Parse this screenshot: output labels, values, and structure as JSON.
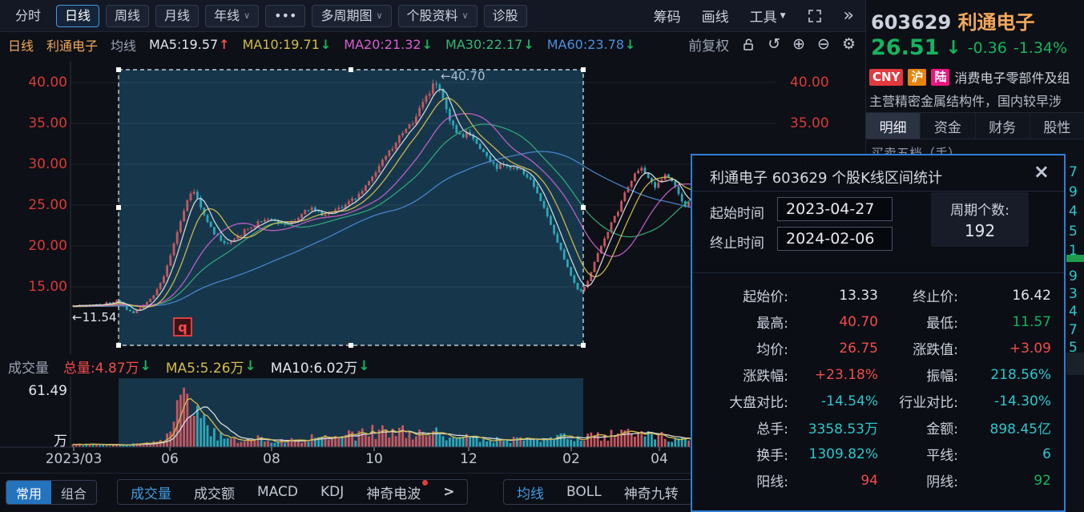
{
  "toolbar": {
    "left": [
      {
        "label": "分时",
        "style": "plain"
      },
      {
        "label": "日线",
        "style": "active"
      },
      {
        "label": "周线"
      },
      {
        "label": "月线"
      },
      {
        "label": "年线",
        "caret": true
      },
      {
        "label": "•••"
      },
      {
        "label": "多周期图",
        "caret": true
      },
      {
        "label": "个股资料",
        "caret": true
      },
      {
        "label": "诊股"
      }
    ],
    "right": [
      "筹码",
      "画线",
      "工具"
    ],
    "more_label": "»"
  },
  "stock": {
    "code": "603629",
    "name": "利通电子",
    "price": "26.51",
    "change": "-0.36",
    "change_pct": "-1.34%"
  },
  "ma_row": {
    "period": "日线",
    "name": "利通电子",
    "label": "均线",
    "items": [
      {
        "text": "MA5:19.57",
        "color": "#e2e6ee",
        "dir": "up"
      },
      {
        "text": "MA10:19.71",
        "color": "#d3bc4e",
        "dir": "down"
      },
      {
        "text": "MA20:21.32",
        "color": "#d85fd0",
        "dir": "down"
      },
      {
        "text": "MA30:22.17",
        "color": "#35b878",
        "dir": "down"
      },
      {
        "text": "MA60:23.78",
        "color": "#4a8fdc",
        "dir": "down"
      }
    ],
    "adjust": "前复权"
  },
  "volume_row": {
    "title": "成交量",
    "total": "总量:4.87万",
    "ma5": "MA5:5.26万",
    "ma10": "MA10:6.02万",
    "max_label": "61.49",
    "unit": "万"
  },
  "bottom": {
    "left_tabs": [
      {
        "label": "常用",
        "active": true
      },
      {
        "label": "组合",
        "active": false
      }
    ],
    "indicators": [
      {
        "label": "成交量",
        "active": true
      },
      {
        "label": "成交额"
      },
      {
        "label": "MACD"
      },
      {
        "label": "KDJ"
      },
      {
        "label": "神奇电波",
        "dot": true
      }
    ],
    "indicators_more": ">",
    "right_indicators": [
      {
        "label": "均线",
        "active": true
      },
      {
        "label": "BOLL"
      },
      {
        "label": "神奇九转"
      }
    ]
  },
  "panel": {
    "badges": [
      {
        "text": "CNY",
        "color": "#e13a3f"
      },
      {
        "text": "沪",
        "color": "#e8830a"
      },
      {
        "text": "陆",
        "color": "#e9167f"
      }
    ],
    "industry": "消费电子零部件及组",
    "description": "主营精密金属结构件，国内较早涉",
    "tabs": [
      {
        "label": "明细",
        "active": true
      },
      {
        "label": "资金"
      },
      {
        "label": "财务"
      },
      {
        "label": "股性"
      }
    ],
    "orderbook_label": "买卖五档（手）",
    "buy_digits": [
      "7",
      "9",
      "4",
      "5",
      "1"
    ],
    "sell_digits": [
      "9",
      "3",
      "4",
      "7",
      "5"
    ]
  },
  "dialog": {
    "title": "利通电子  603629  个股K线区间统计",
    "close": "×",
    "start_label": "起始时间",
    "start_value": "2023-04-27",
    "end_label": "终止时间",
    "end_value": "2024-02-06",
    "period_label": "周期个数:",
    "period_value": "192",
    "stats": [
      [
        {
          "l": "起始价:",
          "v": "13.33",
          "c": "#e2e6ee"
        },
        {
          "l": "终止价:",
          "v": "16.42",
          "c": "#e2e6ee"
        }
      ],
      [
        {
          "l": "最高:",
          "v": "40.70",
          "c": "#f14c4c"
        },
        {
          "l": "最低:",
          "v": "11.57",
          "c": "#16b45f"
        }
      ],
      [
        {
          "l": "均价:",
          "v": "26.75",
          "c": "#f14c4c"
        },
        {
          "l": "涨跌值:",
          "v": "+3.09",
          "c": "#f14c4c"
        }
      ],
      [
        {
          "l": "涨跌幅:",
          "v": "+23.18%",
          "c": "#f14c4c"
        },
        {
          "l": "振幅:",
          "v": "218.56%",
          "c": "#2bc8cd"
        }
      ],
      [
        {
          "l": "大盘对比:",
          "v": "-14.54%",
          "c": "#2bc8cd"
        },
        {
          "l": "行业对比:",
          "v": "-14.30%",
          "c": "#2bc8cd"
        }
      ],
      [
        {
          "l": "总手:",
          "v": "3358.53万",
          "c": "#2bc8cd"
        },
        {
          "l": "金额:",
          "v": "898.45亿",
          "c": "#2bc8cd"
        }
      ],
      [
        {
          "l": "换手:",
          "v": "1309.82%",
          "c": "#2bc8cd"
        },
        {
          "l": "平线:",
          "v": "6",
          "c": "#2bc8cd"
        }
      ],
      [
        {
          "l": "阳线:",
          "v": "94",
          "c": "#f14c4c"
        },
        {
          "l": "阴线:",
          "v": "92",
          "c": "#16b45f"
        }
      ]
    ]
  },
  "chart_data": {
    "type": "candlestick",
    "symbol": "603629",
    "title": "利通电子 日线",
    "high_annotation": "←40.70",
    "low_annotation": "←11.54",
    "event_marker": "q",
    "y_ticks": [
      "40.00",
      "35.00",
      "30.00",
      "25.00",
      "20.00",
      "15.00"
    ],
    "y_tick_values": [
      40,
      35,
      30,
      25,
      20,
      15
    ],
    "x_ticks": [
      "2023/03",
      "06",
      "08",
      "10",
      "12",
      "02",
      "04"
    ],
    "high": 40.7,
    "low": 11.54,
    "volume_max": 61.49,
    "selection": {
      "start": "2023-04-27",
      "end": "2024-02-06",
      "periods": 192
    },
    "up_color": "#c9565e",
    "down_color": "#2ca7b8",
    "ma_colors": {
      "ma5": "#d8dce3",
      "ma10": "#d3bc4e",
      "ma20": "#c45fc9",
      "ma30": "#35a87c",
      "ma60": "#4a86cf"
    },
    "price_anchors": [
      [
        91,
        12.6
      ],
      [
        110,
        12.7
      ],
      [
        130,
        12.9
      ],
      [
        148,
        13.33
      ],
      [
        158,
        12.2
      ],
      [
        166,
        11.8
      ],
      [
        172,
        12.3
      ],
      [
        185,
        13.2
      ],
      [
        195,
        14.5
      ],
      [
        205,
        16.5
      ],
      [
        215,
        19.5
      ],
      [
        225,
        23.0
      ],
      [
        235,
        26.0
      ],
      [
        242,
        26.8
      ],
      [
        250,
        25.0
      ],
      [
        258,
        23.0
      ],
      [
        268,
        21.5
      ],
      [
        280,
        20.3
      ],
      [
        292,
        20.8
      ],
      [
        305,
        21.8
      ],
      [
        318,
        22.6
      ],
      [
        330,
        23.4
      ],
      [
        342,
        22.9
      ],
      [
        355,
        22.6
      ],
      [
        368,
        23.2
      ],
      [
        380,
        24.2
      ],
      [
        392,
        24.6
      ],
      [
        402,
        23.9
      ],
      [
        415,
        24.3
      ],
      [
        428,
        24.9
      ],
      [
        440,
        25.6
      ],
      [
        452,
        26.8
      ],
      [
        462,
        28.0
      ],
      [
        472,
        29.5
      ],
      [
        482,
        31.0
      ],
      [
        492,
        32.0
      ],
      [
        500,
        33.5
      ],
      [
        510,
        34.5
      ],
      [
        520,
        36.0
      ],
      [
        530,
        38.0
      ],
      [
        540,
        39.5
      ],
      [
        546,
        40.0
      ],
      [
        552,
        38.0
      ],
      [
        560,
        35.5
      ],
      [
        568,
        34.0
      ],
      [
        576,
        33.2
      ],
      [
        584,
        33.8
      ],
      [
        592,
        33.0
      ],
      [
        600,
        31.8
      ],
      [
        610,
        30.6
      ],
      [
        620,
        29.6
      ],
      [
        630,
        30.0
      ],
      [
        640,
        29.6
      ],
      [
        650,
        29.2
      ],
      [
        660,
        28.3
      ],
      [
        668,
        27.0
      ],
      [
        676,
        25.5
      ],
      [
        684,
        23.5
      ],
      [
        692,
        21.5
      ],
      [
        700,
        19.5
      ],
      [
        708,
        17.5
      ],
      [
        716,
        15.8
      ],
      [
        724,
        14.2
      ],
      [
        730,
        15.0
      ],
      [
        736,
        16.42
      ],
      [
        744,
        18.5
      ],
      [
        752,
        20.5
      ],
      [
        762,
        22.5
      ],
      [
        772,
        24.5
      ],
      [
        782,
        27.0
      ],
      [
        792,
        28.8
      ],
      [
        800,
        29.6
      ],
      [
        808,
        28.4
      ],
      [
        816,
        27.2
      ],
      [
        824,
        28.0
      ],
      [
        832,
        28.8
      ],
      [
        840,
        27.6
      ],
      [
        848,
        26.2
      ],
      [
        856,
        24.6
      ],
      [
        862,
        25.5
      ],
      [
        867,
        26.5
      ]
    ],
    "volume_anchors": [
      [
        91,
        2.5
      ],
      [
        148,
        2.2
      ],
      [
        185,
        3.5
      ],
      [
        205,
        8
      ],
      [
        215,
        18
      ],
      [
        222,
        40
      ],
      [
        228,
        61
      ],
      [
        236,
        50
      ],
      [
        244,
        38
      ],
      [
        252,
        26
      ],
      [
        262,
        17
      ],
      [
        275,
        11
      ],
      [
        290,
        8
      ],
      [
        310,
        7
      ],
      [
        330,
        9
      ],
      [
        350,
        7
      ],
      [
        370,
        8
      ],
      [
        390,
        10
      ],
      [
        410,
        8
      ],
      [
        430,
        11
      ],
      [
        450,
        13
      ],
      [
        470,
        16
      ],
      [
        490,
        17
      ],
      [
        510,
        15
      ],
      [
        530,
        16
      ],
      [
        546,
        14
      ],
      [
        560,
        13
      ],
      [
        575,
        10
      ],
      [
        590,
        9
      ],
      [
        610,
        8
      ],
      [
        630,
        7
      ],
      [
        650,
        7
      ],
      [
        668,
        8
      ],
      [
        684,
        9
      ],
      [
        700,
        10
      ],
      [
        716,
        8
      ],
      [
        730,
        9
      ],
      [
        744,
        11
      ],
      [
        762,
        12
      ],
      [
        782,
        13
      ],
      [
        800,
        12
      ],
      [
        816,
        10
      ],
      [
        832,
        11
      ],
      [
        848,
        8
      ],
      [
        867,
        7
      ]
    ]
  }
}
